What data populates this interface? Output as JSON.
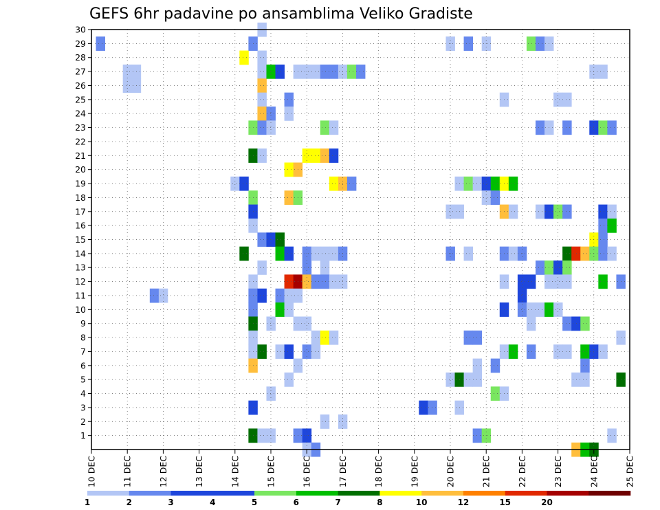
{
  "chart_data": {
    "type": "heatmap",
    "title": "GEFS 6hr padavine po ansamblima Veliko Gradiste",
    "xlabel": "",
    "ylabel": "",
    "x_ticks": [
      "10 DEC",
      "11 DEC",
      "12 DEC",
      "13 DEC",
      "14 DEC",
      "15 DEC",
      "16 DEC",
      "17 DEC",
      "18 DEC",
      "19 DEC",
      "20 DEC",
      "21 DEC",
      "22 DEC",
      "23 DEC",
      "24 DEC",
      "25 DEC"
    ],
    "xlim_days": [
      10,
      25
    ],
    "y_ticks": [
      "1",
      "2",
      "3",
      "4",
      "5",
      "6",
      "7",
      "8",
      "9",
      "10",
      "11",
      "12",
      "13",
      "14",
      "15",
      "16",
      "17",
      "18",
      "19",
      "20",
      "21",
      "22",
      "23",
      "24",
      "25",
      "26",
      "27",
      "28",
      "29",
      "30"
    ],
    "ylim": [
      0,
      30
    ],
    "grid": true,
    "grid_style": "dotted",
    "colorbar": {
      "placement": "bottom",
      "labels": [
        "1",
        "2",
        "3",
        "4",
        "5",
        "6",
        "7",
        "8",
        "10",
        "12",
        "15",
        "20"
      ],
      "colors": [
        "#b3c6f5",
        "#6688ee",
        "#1e46dc",
        "#1e46dc",
        "#7ae660",
        "#00be00",
        "#006e00",
        "#ffff00",
        "#ffbe3c",
        "#ff8000",
        "#e12800",
        "#a50000",
        "#6e0000"
      ],
      "bins": [
        [
          0,
          1
        ],
        [
          1,
          2
        ],
        [
          2,
          3
        ],
        [
          3,
          4
        ],
        [
          4,
          5
        ],
        [
          5,
          6
        ],
        [
          6,
          7
        ],
        [
          7,
          8
        ],
        [
          8,
          10
        ],
        [
          10,
          12
        ],
        [
          12,
          15
        ],
        [
          15,
          20
        ],
        [
          20,
          25
        ]
      ]
    },
    "cells": [
      {
        "day": 10.25,
        "y": 29,
        "v": 2
      },
      {
        "day": 11,
        "y": 27,
        "v": 1
      },
      {
        "day": 11.25,
        "y": 27,
        "v": 1
      },
      {
        "day": 11,
        "y": 26,
        "v": 1
      },
      {
        "day": 11.25,
        "y": 26,
        "v": 1
      },
      {
        "day": 11.75,
        "y": 11,
        "v": 2
      },
      {
        "day": 12,
        "y": 11,
        "v": 1
      },
      {
        "day": 14,
        "y": 19,
        "v": 1
      },
      {
        "day": 14.25,
        "y": 19,
        "v": 3
      },
      {
        "day": 14.25,
        "y": 14,
        "v": 7
      },
      {
        "day": 14.25,
        "y": 28,
        "v": 8
      },
      {
        "day": 14.5,
        "y": 29,
        "v": 2
      },
      {
        "day": 14.5,
        "y": 23,
        "v": 5
      },
      {
        "day": 14.5,
        "y": 21,
        "v": 7
      },
      {
        "day": 14.5,
        "y": 18,
        "v": 5
      },
      {
        "day": 14.5,
        "y": 17,
        "v": 3
      },
      {
        "day": 14.5,
        "y": 16,
        "v": 1
      },
      {
        "day": 14.5,
        "y": 12,
        "v": 1
      },
      {
        "day": 14.5,
        "y": 11,
        "v": 2
      },
      {
        "day": 14.5,
        "y": 10,
        "v": 2
      },
      {
        "day": 14.5,
        "y": 9,
        "v": 7
      },
      {
        "day": 14.5,
        "y": 8,
        "v": 1
      },
      {
        "day": 14.5,
        "y": 7,
        "v": 1
      },
      {
        "day": 14.5,
        "y": 6,
        "v": 9
      },
      {
        "day": 14.5,
        "y": 3,
        "v": 3
      },
      {
        "day": 14.5,
        "y": 1,
        "v": 7
      },
      {
        "day": 14.75,
        "y": 30,
        "v": 1
      },
      {
        "day": 14.75,
        "y": 28,
        "v": 1
      },
      {
        "day": 14.75,
        "y": 27,
        "v": 1
      },
      {
        "day": 14.75,
        "y": 26,
        "v": 9
      },
      {
        "day": 14.75,
        "y": 25,
        "v": 1
      },
      {
        "day": 14.75,
        "y": 24,
        "v": 9
      },
      {
        "day": 14.75,
        "y": 23,
        "v": 2
      },
      {
        "day": 14.75,
        "y": 21,
        "v": 1
      },
      {
        "day": 14.75,
        "y": 15,
        "v": 2
      },
      {
        "day": 14.75,
        "y": 13,
        "v": 1
      },
      {
        "day": 14.75,
        "y": 11,
        "v": 3
      },
      {
        "day": 14.75,
        "y": 7,
        "v": 7
      },
      {
        "day": 14.75,
        "y": 1,
        "v": 1
      },
      {
        "day": 15,
        "y": 27,
        "v": 6
      },
      {
        "day": 15,
        "y": 24,
        "v": 2
      },
      {
        "day": 15,
        "y": 23,
        "v": 1
      },
      {
        "day": 15,
        "y": 15,
        "v": 3
      },
      {
        "day": 15,
        "y": 9,
        "v": 1
      },
      {
        "day": 15,
        "y": 4,
        "v": 1
      },
      {
        "day": 15,
        "y": 1,
        "v": 1
      },
      {
        "day": 15.25,
        "y": 27,
        "v": 3
      },
      {
        "day": 15.25,
        "y": 15,
        "v": 7
      },
      {
        "day": 15.25,
        "y": 14,
        "v": 6
      },
      {
        "day": 15.25,
        "y": 11,
        "v": 2
      },
      {
        "day": 15.25,
        "y": 10,
        "v": 6
      },
      {
        "day": 15.25,
        "y": 7,
        "v": 1
      },
      {
        "day": 15.5,
        "y": 25,
        "v": 2
      },
      {
        "day": 15.5,
        "y": 24,
        "v": 1
      },
      {
        "day": 15.5,
        "y": 20,
        "v": 8
      },
      {
        "day": 15.5,
        "y": 18,
        "v": 10
      },
      {
        "day": 15.5,
        "y": 14,
        "v": 3
      },
      {
        "day": 15.5,
        "y": 12,
        "v": 15
      },
      {
        "day": 15.5,
        "y": 11,
        "v": 1
      },
      {
        "day": 15.5,
        "y": 10,
        "v": 1
      },
      {
        "day": 15.5,
        "y": 7,
        "v": 3
      },
      {
        "day": 15.5,
        "y": 5,
        "v": 1
      },
      {
        "day": 15.75,
        "y": 27,
        "v": 1
      },
      {
        "day": 15.75,
        "y": 20,
        "v": 10
      },
      {
        "day": 15.75,
        "y": 18,
        "v": 5
      },
      {
        "day": 15.75,
        "y": 12,
        "v": 20
      },
      {
        "day": 15.75,
        "y": 11,
        "v": 1
      },
      {
        "day": 15.75,
        "y": 9,
        "v": 1
      },
      {
        "day": 15.75,
        "y": 6,
        "v": 1
      },
      {
        "day": 15.75,
        "y": 1,
        "v": 2
      },
      {
        "day": 16,
        "y": 27,
        "v": 1
      },
      {
        "day": 16,
        "y": 21,
        "v": 8
      },
      {
        "day": 16,
        "y": 14,
        "v": 2
      },
      {
        "day": 16,
        "y": 13,
        "v": 2
      },
      {
        "day": 16,
        "y": 12,
        "v": 9
      },
      {
        "day": 16,
        "y": 9,
        "v": 1
      },
      {
        "day": 16,
        "y": 7,
        "v": 2
      },
      {
        "day": 16,
        "y": 1,
        "v": 3
      },
      {
        "day": 16,
        "y": 0,
        "v": 1
      },
      {
        "day": 16.25,
        "y": 27,
        "v": 1
      },
      {
        "day": 16.25,
        "y": 21,
        "v": 8
      },
      {
        "day": 16.25,
        "y": 14,
        "v": 1
      },
      {
        "day": 16.25,
        "y": 12,
        "v": 2
      },
      {
        "day": 16.25,
        "y": 8,
        "v": 1
      },
      {
        "day": 16.25,
        "y": 7,
        "v": 1
      },
      {
        "day": 16.25,
        "y": 0,
        "v": 2
      },
      {
        "day": 16.5,
        "y": 27,
        "v": 2
      },
      {
        "day": 16.5,
        "y": 23,
        "v": 5
      },
      {
        "day": 16.5,
        "y": 21,
        "v": 10
      },
      {
        "day": 16.5,
        "y": 14,
        "v": 1
      },
      {
        "day": 16.5,
        "y": 13,
        "v": 1
      },
      {
        "day": 16.5,
        "y": 12,
        "v": 2
      },
      {
        "day": 16.5,
        "y": 8,
        "v": 8
      },
      {
        "day": 16.5,
        "y": 2,
        "v": 1
      },
      {
        "day": 16.75,
        "y": 27,
        "v": 2
      },
      {
        "day": 16.75,
        "y": 23,
        "v": 1
      },
      {
        "day": 16.75,
        "y": 21,
        "v": 3
      },
      {
        "day": 16.75,
        "y": 19,
        "v": 8
      },
      {
        "day": 16.75,
        "y": 14,
        "v": 1
      },
      {
        "day": 16.75,
        "y": 12,
        "v": 1
      },
      {
        "day": 16.75,
        "y": 8,
        "v": 1
      },
      {
        "day": 17,
        "y": 27,
        "v": 1
      },
      {
        "day": 17,
        "y": 19,
        "v": 9
      },
      {
        "day": 17,
        "y": 14,
        "v": 2
      },
      {
        "day": 17,
        "y": 12,
        "v": 1
      },
      {
        "day": 17,
        "y": 2,
        "v": 1
      },
      {
        "day": 17.25,
        "y": 27,
        "v": 5
      },
      {
        "day": 17.25,
        "y": 19,
        "v": 2
      },
      {
        "day": 17.5,
        "y": 27,
        "v": 2
      },
      {
        "day": 19.25,
        "y": 3,
        "v": 3
      },
      {
        "day": 19.5,
        "y": 3,
        "v": 2
      },
      {
        "day": 20,
        "y": 29,
        "v": 1
      },
      {
        "day": 20,
        "y": 17,
        "v": 1
      },
      {
        "day": 20,
        "y": 14,
        "v": 2
      },
      {
        "day": 20,
        "y": 5,
        "v": 1
      },
      {
        "day": 20.25,
        "y": 19,
        "v": 1
      },
      {
        "day": 20.25,
        "y": 17,
        "v": 1
      },
      {
        "day": 20.25,
        "y": 5,
        "v": 7
      },
      {
        "day": 20.25,
        "y": 3,
        "v": 1
      },
      {
        "day": 20.5,
        "y": 29,
        "v": 2
      },
      {
        "day": 20.5,
        "y": 19,
        "v": 5
      },
      {
        "day": 20.5,
        "y": 14,
        "v": 1
      },
      {
        "day": 20.5,
        "y": 5,
        "v": 1
      },
      {
        "day": 20.5,
        "y": 8,
        "v": 2
      },
      {
        "day": 20.75,
        "y": 19,
        "v": 1
      },
      {
        "day": 20.75,
        "y": 8,
        "v": 2
      },
      {
        "day": 20.75,
        "y": 6,
        "v": 1
      },
      {
        "day": 20.75,
        "y": 5,
        "v": 1
      },
      {
        "day": 20.75,
        "y": 1,
        "v": 2
      },
      {
        "day": 21,
        "y": 29,
        "v": 1
      },
      {
        "day": 21,
        "y": 19,
        "v": 3
      },
      {
        "day": 21,
        "y": 18,
        "v": 1
      },
      {
        "day": 21,
        "y": 1,
        "v": 5
      },
      {
        "day": 21.25,
        "y": 19,
        "v": 6
      },
      {
        "day": 21.25,
        "y": 18,
        "v": 2
      },
      {
        "day": 21.25,
        "y": 6,
        "v": 2
      },
      {
        "day": 21.25,
        "y": 4,
        "v": 5
      },
      {
        "day": 21.5,
        "y": 25,
        "v": 1
      },
      {
        "day": 21.5,
        "y": 19,
        "v": 8
      },
      {
        "day": 21.5,
        "y": 17,
        "v": 9
      },
      {
        "day": 21.5,
        "y": 14,
        "v": 2
      },
      {
        "day": 21.5,
        "y": 12,
        "v": 1
      },
      {
        "day": 21.5,
        "y": 10,
        "v": 3
      },
      {
        "day": 21.5,
        "y": 7,
        "v": 1
      },
      {
        "day": 21.5,
        "y": 4,
        "v": 1
      },
      {
        "day": 21.75,
        "y": 19,
        "v": 6
      },
      {
        "day": 21.75,
        "y": 17,
        "v": 1
      },
      {
        "day": 21.75,
        "y": 14,
        "v": 1
      },
      {
        "day": 21.75,
        "y": 7,
        "v": 6
      },
      {
        "day": 22,
        "y": 14,
        "v": 2
      },
      {
        "day": 22,
        "y": 12,
        "v": 3
      },
      {
        "day": 22,
        "y": 11,
        "v": 3
      },
      {
        "day": 22,
        "y": 10,
        "v": 2
      },
      {
        "day": 22.25,
        "y": 29,
        "v": 5
      },
      {
        "day": 22.25,
        "y": 12,
        "v": 3
      },
      {
        "day": 22.25,
        "y": 10,
        "v": 1
      },
      {
        "day": 22.25,
        "y": 9,
        "v": 1
      },
      {
        "day": 22.25,
        "y": 7,
        "v": 2
      },
      {
        "day": 22.5,
        "y": 29,
        "v": 2
      },
      {
        "day": 22.5,
        "y": 23,
        "v": 2
      },
      {
        "day": 22.5,
        "y": 17,
        "v": 1
      },
      {
        "day": 22.5,
        "y": 13,
        "v": 2
      },
      {
        "day": 22.5,
        "y": 10,
        "v": 1
      },
      {
        "day": 22.75,
        "y": 29,
        "v": 1
      },
      {
        "day": 22.75,
        "y": 23,
        "v": 1
      },
      {
        "day": 22.75,
        "y": 17,
        "v": 3
      },
      {
        "day": 22.75,
        "y": 13,
        "v": 5
      },
      {
        "day": 22.75,
        "y": 12,
        "v": 1
      },
      {
        "day": 22.75,
        "y": 10,
        "v": 6
      },
      {
        "day": 23,
        "y": 25,
        "v": 1
      },
      {
        "day": 23,
        "y": 17,
        "v": 5
      },
      {
        "day": 23,
        "y": 13,
        "v": 3
      },
      {
        "day": 23,
        "y": 12,
        "v": 1
      },
      {
        "day": 23,
        "y": 10,
        "v": 1
      },
      {
        "day": 23,
        "y": 7,
        "v": 1
      },
      {
        "day": 23.25,
        "y": 25,
        "v": 1
      },
      {
        "day": 23.25,
        "y": 23,
        "v": 2
      },
      {
        "day": 23.25,
        "y": 17,
        "v": 2
      },
      {
        "day": 23.25,
        "y": 14,
        "v": 7
      },
      {
        "day": 23.25,
        "y": 13,
        "v": 5
      },
      {
        "day": 23.25,
        "y": 12,
        "v": 1
      },
      {
        "day": 23.25,
        "y": 9,
        "v": 2
      },
      {
        "day": 23.25,
        "y": 7,
        "v": 1
      },
      {
        "day": 23.5,
        "y": 14,
        "v": 15
      },
      {
        "day": 23.5,
        "y": 9,
        "v": 3
      },
      {
        "day": 23.5,
        "y": 5,
        "v": 1
      },
      {
        "day": 23.5,
        "y": 0,
        "v": 10
      },
      {
        "day": 23.75,
        "y": 14,
        "v": 10
      },
      {
        "day": 23.75,
        "y": 9,
        "v": 5
      },
      {
        "day": 23.75,
        "y": 7,
        "v": 6
      },
      {
        "day": 23.75,
        "y": 6,
        "v": 2
      },
      {
        "day": 23.75,
        "y": 5,
        "v": 1
      },
      {
        "day": 23.75,
        "y": 0,
        "v": 6
      },
      {
        "day": 24,
        "y": 27,
        "v": 1
      },
      {
        "day": 24,
        "y": 23,
        "v": 3
      },
      {
        "day": 24,
        "y": 15,
        "v": 8
      },
      {
        "day": 24,
        "y": 14,
        "v": 5
      },
      {
        "day": 24,
        "y": 7,
        "v": 3
      },
      {
        "day": 24,
        "y": 0,
        "v": 7
      },
      {
        "day": 24.25,
        "y": 27,
        "v": 1
      },
      {
        "day": 24.25,
        "y": 23,
        "v": 5
      },
      {
        "day": 24.25,
        "y": 17,
        "v": 3
      },
      {
        "day": 24.25,
        "y": 16,
        "v": 2
      },
      {
        "day": 24.25,
        "y": 15,
        "v": 2
      },
      {
        "day": 24.25,
        "y": 14,
        "v": 2
      },
      {
        "day": 24.25,
        "y": 12,
        "v": 6
      },
      {
        "day": 24.25,
        "y": 7,
        "v": 1
      },
      {
        "day": 24.5,
        "y": 23,
        "v": 2
      },
      {
        "day": 24.5,
        "y": 17,
        "v": 1
      },
      {
        "day": 24.5,
        "y": 16,
        "v": 6
      },
      {
        "day": 24.5,
        "y": 14,
        "v": 1
      },
      {
        "day": 24.5,
        "y": 1,
        "v": 1
      },
      {
        "day": 24.75,
        "y": 12,
        "v": 2
      },
      {
        "day": 24.75,
        "y": 8,
        "v": 1
      },
      {
        "day": 24.75,
        "y": 5,
        "v": 7
      }
    ]
  }
}
